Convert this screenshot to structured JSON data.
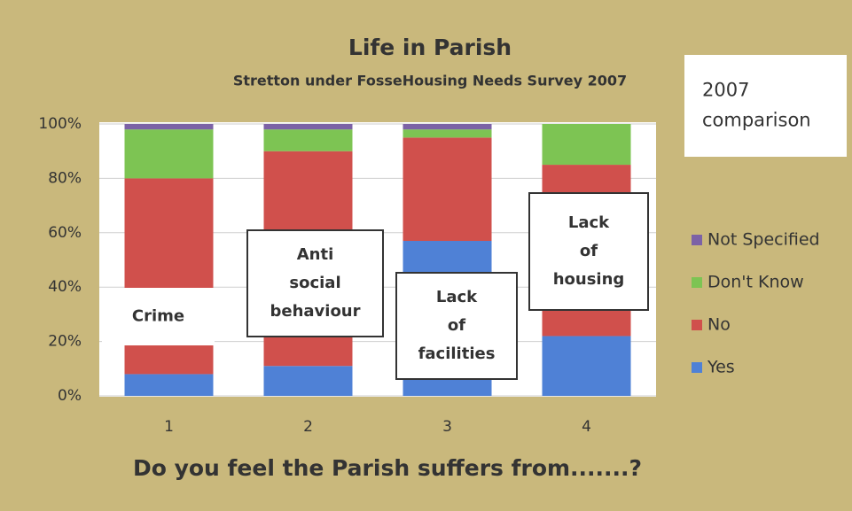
{
  "chart_data": {
    "type": "stacked_bar",
    "title": "Life in Parish",
    "subtitle": "Stretton under FosseHousing Needs Survey 2007",
    "x_label": "Do you feel the Parish suffers from.......?",
    "categories": [
      "1",
      "2",
      "3",
      "4"
    ],
    "series": [
      {
        "name": "Yes",
        "color": "#4f81d6",
        "values": [
          8,
          11,
          57,
          22
        ]
      },
      {
        "name": "No",
        "color": "#d0504c",
        "values": [
          72,
          79,
          38,
          63
        ]
      },
      {
        "name": "Don't Know",
        "color": "#7dc453",
        "values": [
          18,
          8,
          3,
          15
        ]
      },
      {
        "name": "Not Specified",
        "color": "#7c62a6",
        "values": [
          2,
          2,
          2,
          0
        ]
      }
    ],
    "ylim": [
      0,
      100
    ],
    "yticks": [
      {
        "value": 0,
        "label": "0%"
      },
      {
        "value": 20,
        "label": "20%"
      },
      {
        "value": 40,
        "label": "40%"
      },
      {
        "value": 60,
        "label": "60%"
      },
      {
        "value": 80,
        "label": "80%"
      },
      {
        "value": 100,
        "label": "100%"
      }
    ],
    "grid": true,
    "legend": "right",
    "annotations": [
      [
        "Crime"
      ],
      [
        "Anti",
        "social",
        "behaviour"
      ],
      [
        "Lack",
        "of",
        "facilities"
      ],
      [
        "Lack",
        "of",
        "housing"
      ],
      [
        "2007",
        "comparison"
      ]
    ]
  }
}
